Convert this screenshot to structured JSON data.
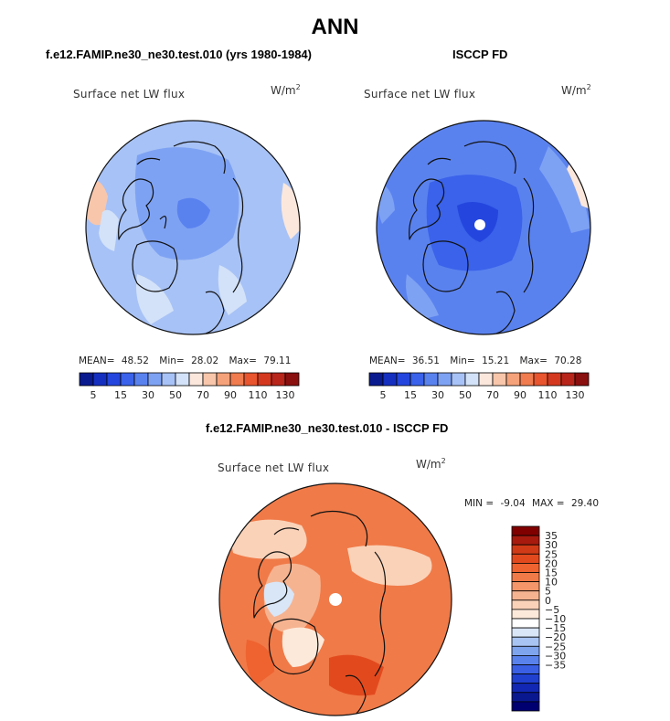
{
  "figure": {
    "title": "ANN",
    "colors": {
      "land_outline": "#111111",
      "pole_hole": "#ffffff"
    }
  },
  "chart_data": [
    {
      "type": "heatmap",
      "projection": "north polar stereographic",
      "title": "f.e12.FAMIP.ne30_ne30.test.010 (yrs 1980-1984)",
      "variable_label": "Surface net LW flux",
      "units": "W/m",
      "units_exponent": "2",
      "stats": {
        "mean_label": "MEAN=",
        "mean": "48.52",
        "min_label": "Min=",
        "min": "28.02",
        "max_label": "Max=",
        "max": "79.11"
      },
      "colorbar": {
        "orientation": "horizontal",
        "tick_labels": [
          "5",
          "15",
          "30",
          "50",
          "70",
          "90",
          "110",
          "130"
        ],
        "colors": [
          "#0a1a8f",
          "#1530c0",
          "#2446de",
          "#3a62ea",
          "#5a82ef",
          "#7ea2f3",
          "#a7c2f6",
          "#d3e2f8",
          "#fbe7dc",
          "#f8c6ab",
          "#f5a27a",
          "#f07c4f",
          "#e8552e",
          "#d4381e",
          "#b8251a",
          "#8a0f0f"
        ]
      },
      "field_summary": [
        "mostly 30-50 over the Arctic basin",
        "50-70 near the North Atlantic margins"
      ]
    },
    {
      "type": "heatmap",
      "projection": "north polar stereographic",
      "title": "ISCCP FD",
      "variable_label": "Surface net LW flux",
      "units": "W/m",
      "units_exponent": "2",
      "stats": {
        "mean_label": "MEAN=",
        "mean": "36.51",
        "min_label": "Min=",
        "min": "15.21",
        "max_label": "Max=",
        "max": "70.28"
      },
      "colorbar": {
        "orientation": "horizontal",
        "tick_labels": [
          "5",
          "15",
          "30",
          "50",
          "70",
          "90",
          "110",
          "130"
        ],
        "colors": [
          "#0a1a8f",
          "#1530c0",
          "#2446de",
          "#3a62ea",
          "#5a82ef",
          "#7ea2f3",
          "#a7c2f6",
          "#d3e2f8",
          "#fbe7dc",
          "#f8c6ab",
          "#f5a27a",
          "#f07c4f",
          "#e8552e",
          "#d4381e",
          "#b8251a",
          "#8a0f0f"
        ]
      },
      "field_summary": [
        "15-30 over the central Arctic",
        "30-50 elsewhere"
      ]
    },
    {
      "type": "heatmap",
      "projection": "north polar stereographic",
      "title": "f.e12.FAMIP.ne30_ne30.test.010 - ISCCP FD",
      "variable_label": "Surface net LW flux",
      "units": "W/m",
      "units_exponent": "2",
      "stats": {
        "min_label": "MIN =",
        "min": "-9.04",
        "max_label": "MAX =",
        "max": "29.40"
      },
      "colorbar": {
        "orientation": "vertical",
        "tick_labels": [
          "35",
          "30",
          "25",
          "20",
          "15",
          "10",
          "5",
          "0",
          "−5",
          "−10",
          "−15",
          "−20",
          "−25",
          "−30",
          "−35"
        ],
        "colors": [
          "#800000",
          "#a81a0e",
          "#d03a16",
          "#e24a1e",
          "#ee6330",
          "#f07a48",
          "#f4966a",
          "#f6b390",
          "#fad2b8",
          "#fde9da",
          "#ffffff",
          "#d8e6f8",
          "#a8c4f2",
          "#7ea4ee",
          "#5a82ec",
          "#3a5fe4",
          "#2040d0",
          "#1228b4",
          "#0a1890",
          "#000070"
        ]
      },
      "field_summary": [
        "positive 5-30 almost everywhere",
        "largest over Greenland and land",
        "near zero patches over Canadian Archipelago"
      ]
    }
  ]
}
